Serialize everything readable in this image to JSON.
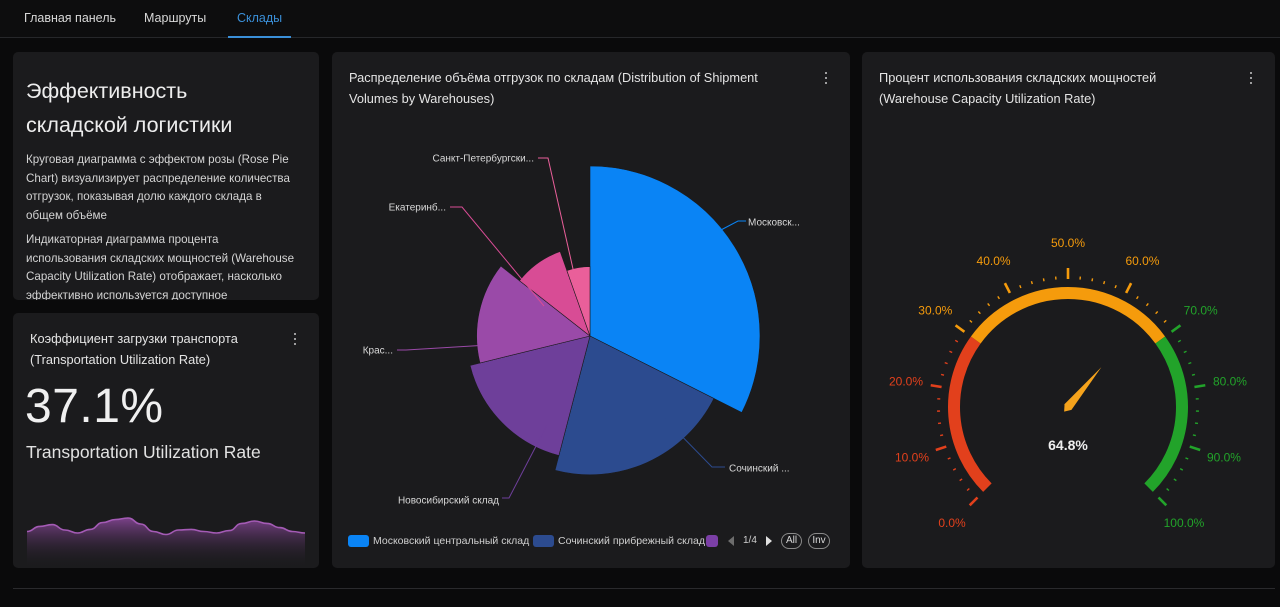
{
  "nav": {
    "tabs": [
      {
        "label": "Главная панель",
        "active": false
      },
      {
        "label": "Маршруты",
        "active": false
      },
      {
        "label": "Склады",
        "active": true
      }
    ]
  },
  "description": {
    "title_line1": "Эффективность",
    "title_line2": "складской логистики",
    "p1_lines": [
      "Круговая диаграмма с эффектом розы (Rose Pie",
      "Chart) визуализирует распределение количества",
      "отгрузок, показывая долю каждого склада в",
      "общем объёме"
    ],
    "p2_lines": [
      "Индикаторная диаграмма процента",
      "использования складских мощностей (Warehouse",
      "Capacity Utilization Rate) отображает, насколько",
      "эффективно используется доступное"
    ]
  },
  "kpi": {
    "title_line1": "Коэффициент загрузки транспорта",
    "title_line2": "(Transportation Utilization Rate)",
    "value": "37.1%",
    "label": "Transportation Utilization Rate",
    "sparkline_color": "#a45bb5",
    "sparkline": [
      0.55,
      0.72,
      0.78,
      0.6,
      0.5,
      0.62,
      0.85,
      0.95,
      1.0,
      0.8,
      0.55,
      0.45,
      0.6,
      0.62,
      0.55,
      0.5,
      0.58,
      0.82,
      0.9,
      0.82,
      0.68,
      0.55,
      0.5
    ]
  },
  "rose": {
    "title_line1": "Распределение объёма отгрузок по складам (Distribution of Shipment",
    "title_line2": "Volumes by Warehouses)",
    "slice_labels": [
      "Московск...",
      "Сочинский ...",
      "Новосибирский склад",
      "Крас...",
      "Екатеринб...",
      "Санкт-Петербургски..."
    ],
    "legend": [
      {
        "name": "Московский центральный склад",
        "color": "#0a84f5"
      },
      {
        "name": "Сочинский прибрежный склад",
        "color": "#2c4b8f"
      },
      {
        "name": "",
        "color": "#7b3fa6"
      }
    ],
    "pager": "1/4",
    "btn_all": "All",
    "btn_inv": "Inv"
  },
  "chart_data": {
    "type": "pie",
    "variant": "rose",
    "categories": [
      "Московск...",
      "Сочинский ...",
      "Новосибирский склад",
      "Крас...",
      "Екатеринб...",
      "Санкт-Петербургски..."
    ],
    "values": [
      36,
      24,
      19,
      16,
      10,
      6
    ],
    "colors": [
      "#0a84f5",
      "#2c4b8f",
      "#6e3f9a",
      "#9a4aa8",
      "#d84c95",
      "#ea5f9a"
    ]
  },
  "gauge": {
    "title_line1": "Процент использования складских мощностей",
    "title_line2": "(Warehouse Capacity Utilization Rate)",
    "value": 64.8,
    "value_text": "64.8%",
    "tick_labels": [
      "0.0%",
      "10.0%",
      "20.0%",
      "30.0%",
      "40.0%",
      "50.0%",
      "60.0%",
      "70.0%",
      "80.0%",
      "90.0%",
      "100.0%"
    ],
    "band_colors": {
      "low": "#e2401c",
      "mid": "#f59b0c",
      "high": "#22a32a"
    },
    "pointer_color": "#f5a31c"
  }
}
